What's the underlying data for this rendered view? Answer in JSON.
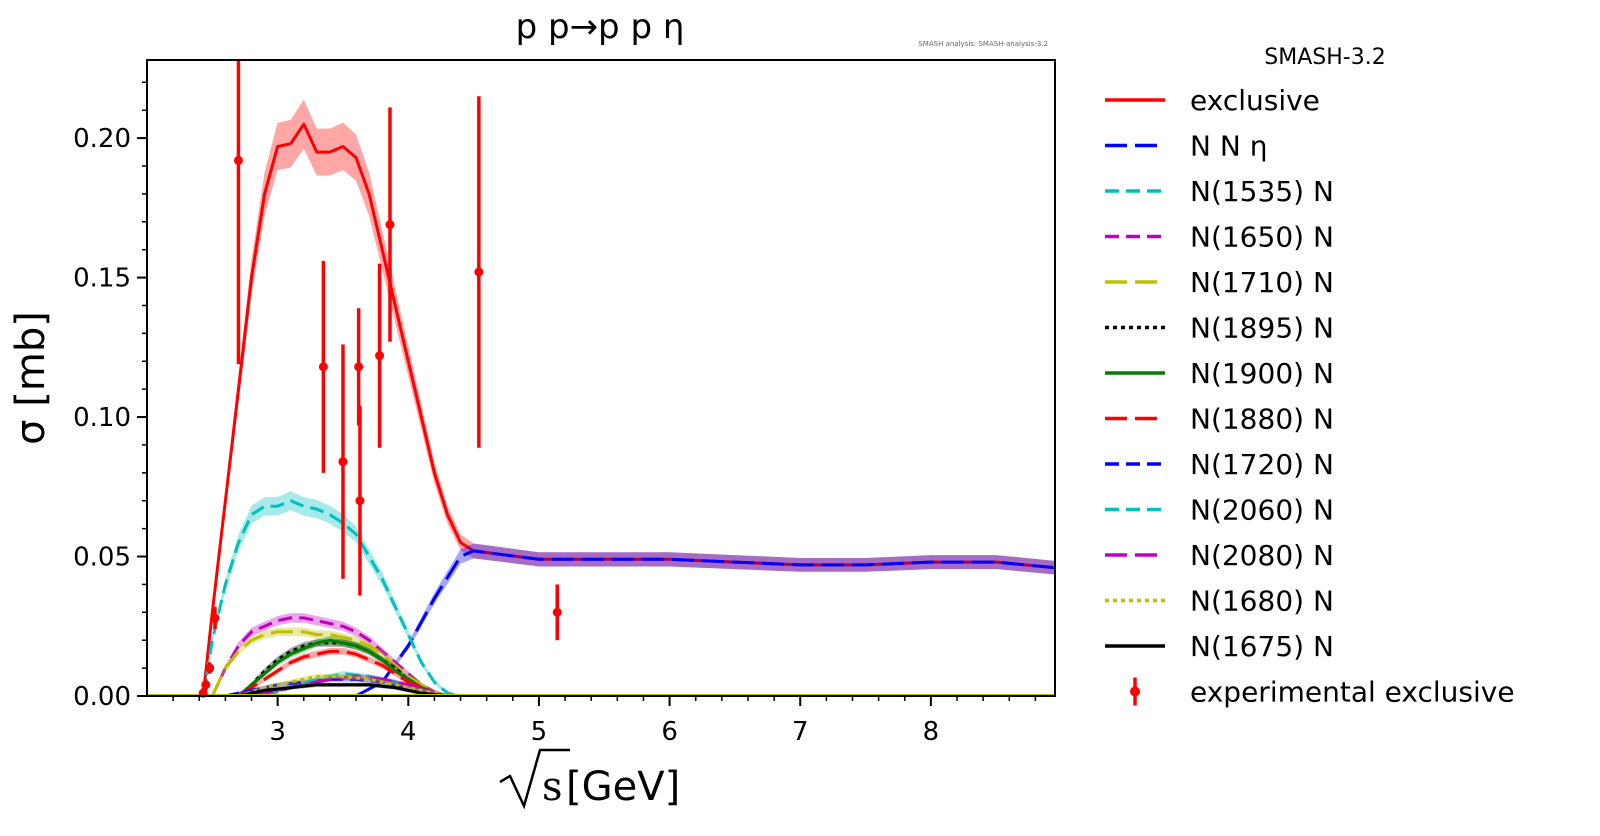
{
  "chart_data": {
    "type": "line",
    "title": "p p→p p η",
    "credit": "SMASH analysis: SMASH-analysis-3.2",
    "version": "SMASH-3.2",
    "xlabel": "[GeV]",
    "xlabel_symbol": "√s",
    "ylabel": "σ [mb]",
    "xlim": [
      2.0,
      8.95
    ],
    "ylim": [
      0.0,
      0.228
    ],
    "xticks": [
      3,
      4,
      5,
      6,
      7,
      8
    ],
    "xtick_labels": [
      "3",
      "4",
      "5",
      "6",
      "7",
      "8"
    ],
    "yticks": [
      0.0,
      0.05,
      0.1,
      0.15,
      0.2
    ],
    "ytick_labels": [
      "0.00",
      "0.05",
      "0.10",
      "0.15",
      "0.20"
    ],
    "legend_position": "outside-right",
    "series": [
      {
        "name": "exclusive",
        "color": "#ff0000",
        "dash": "solid",
        "x": [
          2.43,
          2.5,
          2.6,
          2.7,
          2.8,
          2.9,
          3.0,
          3.1,
          3.2,
          3.3,
          3.4,
          3.5,
          3.6,
          3.7,
          3.8,
          3.9,
          4.0,
          4.1,
          4.2,
          4.3,
          4.4,
          4.5,
          5.0,
          5.5,
          6.0,
          6.5,
          7.0,
          7.5,
          8.0,
          8.5,
          8.95
        ],
        "y": [
          0.0,
          0.03,
          0.07,
          0.11,
          0.15,
          0.18,
          0.197,
          0.198,
          0.205,
          0.195,
          0.195,
          0.197,
          0.193,
          0.18,
          0.16,
          0.14,
          0.12,
          0.1,
          0.08,
          0.065,
          0.055,
          0.052,
          0.049,
          0.049,
          0.049,
          0.048,
          0.047,
          0.047,
          0.048,
          0.048,
          0.046
        ]
      },
      {
        "name": "N N η",
        "color": "#0000ff",
        "dash": "longdash",
        "x": [
          2.0,
          3.6,
          3.8,
          4.0,
          4.2,
          4.4,
          4.5,
          5.0,
          5.5,
          6.0,
          6.5,
          7.0,
          7.5,
          8.0,
          8.5,
          8.95
        ],
        "y": [
          0.0,
          0.0,
          0.005,
          0.018,
          0.035,
          0.05,
          0.052,
          0.049,
          0.049,
          0.049,
          0.048,
          0.047,
          0.047,
          0.048,
          0.048,
          0.046
        ]
      },
      {
        "name": "N(1535) N",
        "color": "#00bfbf",
        "dash": "dash",
        "x": [
          2.43,
          2.5,
          2.6,
          2.7,
          2.8,
          2.9,
          3.0,
          3.1,
          3.2,
          3.3,
          3.4,
          3.5,
          3.6,
          3.7,
          3.8,
          3.9,
          4.0,
          4.1,
          4.2,
          4.3,
          4.4
        ],
        "y": [
          0.0,
          0.02,
          0.04,
          0.055,
          0.065,
          0.068,
          0.068,
          0.07,
          0.068,
          0.067,
          0.065,
          0.062,
          0.058,
          0.05,
          0.042,
          0.032,
          0.022,
          0.012,
          0.005,
          0.001,
          0.0
        ]
      },
      {
        "name": "N(1650) N",
        "color": "#bf00bf",
        "dash": "dash",
        "x": [
          2.5,
          2.6,
          2.7,
          2.8,
          2.9,
          3.0,
          3.1,
          3.2,
          3.3,
          3.4,
          3.5,
          3.6,
          3.7,
          3.8,
          3.9,
          4.0,
          4.1,
          4.2,
          4.3
        ],
        "y": [
          0.0,
          0.01,
          0.018,
          0.023,
          0.025,
          0.027,
          0.028,
          0.028,
          0.027,
          0.026,
          0.025,
          0.023,
          0.02,
          0.016,
          0.012,
          0.008,
          0.004,
          0.0015,
          0.0
        ]
      },
      {
        "name": "N(1710) N",
        "color": "#bfbf00",
        "dash": "longdash",
        "x": [
          2.5,
          2.6,
          2.7,
          2.8,
          2.9,
          3.0,
          3.1,
          3.2,
          3.3,
          3.4,
          3.5,
          3.6,
          3.7,
          3.8,
          3.9,
          4.0,
          4.1,
          4.2,
          4.3
        ],
        "y": [
          0.0,
          0.01,
          0.016,
          0.02,
          0.022,
          0.023,
          0.023,
          0.023,
          0.022,
          0.022,
          0.021,
          0.02,
          0.018,
          0.015,
          0.011,
          0.007,
          0.004,
          0.0015,
          0.0
        ]
      },
      {
        "name": "N(1895) N",
        "color": "#000000",
        "dash": "dot",
        "x": [
          2.7,
          2.8,
          2.9,
          3.0,
          3.1,
          3.2,
          3.3,
          3.4,
          3.5,
          3.6,
          3.7,
          3.8,
          3.9,
          4.0,
          4.1,
          4.2,
          4.3
        ],
        "y": [
          0.0,
          0.004,
          0.009,
          0.013,
          0.016,
          0.018,
          0.019,
          0.019,
          0.019,
          0.018,
          0.016,
          0.013,
          0.01,
          0.006,
          0.003,
          0.001,
          0.0
        ]
      },
      {
        "name": "N(1900) N",
        "color": "#007f00",
        "dash": "solid",
        "x": [
          2.7,
          2.8,
          2.9,
          3.0,
          3.1,
          3.2,
          3.3,
          3.4,
          3.5,
          3.6,
          3.7,
          3.8,
          3.9,
          4.0,
          4.1,
          4.2,
          4.3
        ],
        "y": [
          0.0,
          0.004,
          0.008,
          0.012,
          0.015,
          0.017,
          0.019,
          0.02,
          0.019,
          0.018,
          0.016,
          0.013,
          0.009,
          0.006,
          0.003,
          0.001,
          0.0
        ]
      },
      {
        "name": "N(1880) N",
        "color": "#ff0000",
        "dash": "longdash",
        "x": [
          2.7,
          2.8,
          2.9,
          3.0,
          3.1,
          3.2,
          3.3,
          3.4,
          3.5,
          3.6,
          3.7,
          3.8,
          3.9,
          4.0,
          4.1,
          4.2,
          4.3
        ],
        "y": [
          0.0,
          0.003,
          0.006,
          0.009,
          0.012,
          0.014,
          0.015,
          0.016,
          0.016,
          0.015,
          0.013,
          0.011,
          0.008,
          0.005,
          0.003,
          0.001,
          0.0
        ]
      },
      {
        "name": "N(1720) N",
        "color": "#0000ff",
        "dash": "dash",
        "x": [
          2.6,
          2.8,
          3.0,
          3.2,
          3.4,
          3.6,
          3.8,
          4.0,
          4.2,
          4.3
        ],
        "y": [
          0.0,
          0.002,
          0.004,
          0.005,
          0.006,
          0.006,
          0.005,
          0.003,
          0.001,
          0.0
        ]
      },
      {
        "name": "N(2060) N",
        "color": "#00bfbf",
        "dash": "dash",
        "x": [
          2.9,
          3.1,
          3.3,
          3.5,
          3.7,
          3.9,
          4.1,
          4.3
        ],
        "y": [
          0.0,
          0.003,
          0.006,
          0.008,
          0.007,
          0.005,
          0.002,
          0.0
        ]
      },
      {
        "name": "N(2080) N",
        "color": "#bf00bf",
        "dash": "longdash",
        "x": [
          2.8,
          3.0,
          3.2,
          3.4,
          3.6,
          3.8,
          4.0,
          4.2,
          4.3
        ],
        "y": [
          0.0,
          0.002,
          0.004,
          0.006,
          0.007,
          0.006,
          0.004,
          0.001,
          0.0
        ]
      },
      {
        "name": "N(1680) N",
        "color": "#bfbf00",
        "dash": "dot",
        "x": [
          2.7,
          2.9,
          3.1,
          3.3,
          3.5,
          3.7,
          3.9,
          4.1,
          4.3
        ],
        "y": [
          0.0,
          0.003,
          0.005,
          0.007,
          0.007,
          0.006,
          0.004,
          0.002,
          0.0
        ]
      },
      {
        "name": "N(1675) N",
        "color": "#000000",
        "dash": "solid",
        "x": [
          2.7,
          2.9,
          3.1,
          3.3,
          3.5,
          3.7,
          3.9,
          4.1,
          4.3
        ],
        "y": [
          0.0,
          0.002,
          0.003,
          0.004,
          0.004,
          0.004,
          0.003,
          0.001,
          0.0
        ]
      }
    ],
    "experimental": {
      "name": "experimental exclusive",
      "color": "#ff0000",
      "points": [
        {
          "x": 2.43,
          "y": 0.001,
          "err": 0.002
        },
        {
          "x": 2.45,
          "y": 0.004,
          "err": 0.002
        },
        {
          "x": 2.48,
          "y": 0.01,
          "err": 0.002
        },
        {
          "x": 2.52,
          "y": 0.028,
          "err": 0.004
        },
        {
          "x": 2.7,
          "y": 0.192,
          "err": 0.073
        },
        {
          "x": 3.35,
          "y": 0.118,
          "err": 0.038
        },
        {
          "x": 3.5,
          "y": 0.084,
          "err": 0.042
        },
        {
          "x": 3.62,
          "y": 0.118,
          "err": 0.021
        },
        {
          "x": 3.63,
          "y": 0.07,
          "err": 0.034
        },
        {
          "x": 3.78,
          "y": 0.122,
          "err": 0.033
        },
        {
          "x": 3.86,
          "y": 0.169,
          "err": 0.042
        },
        {
          "x": 4.54,
          "y": 0.152,
          "err": 0.063
        },
        {
          "x": 5.14,
          "y": 0.03,
          "err": 0.01
        }
      ]
    }
  }
}
